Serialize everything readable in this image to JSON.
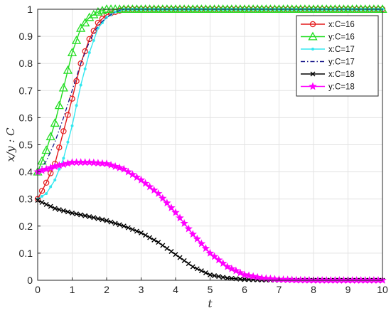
{
  "chart_data": {
    "type": "line",
    "xlabel": "t",
    "ylabel": "x/y : C",
    "xlim": [
      0,
      10
    ],
    "ylim": [
      0,
      1
    ],
    "xticks": [
      0,
      1,
      2,
      3,
      4,
      5,
      6,
      7,
      8,
      9,
      10
    ],
    "yticks": [
      0,
      0.1,
      0.2,
      0.3,
      0.4,
      0.5,
      0.6,
      0.7,
      0.8,
      0.9,
      1
    ],
    "grid": true,
    "legend_position": "top-right",
    "series": [
      {
        "name": "x:C=16",
        "color": "#e41a1c",
        "marker": "circle",
        "line": "solid",
        "x": [
          0,
          0.25,
          0.5,
          0.75,
          1,
          1.25,
          1.5,
          1.75,
          2,
          2.5,
          3,
          4,
          5,
          6,
          7,
          8,
          9,
          10
        ],
        "y": [
          0.3,
          0.36,
          0.43,
          0.55,
          0.67,
          0.8,
          0.89,
          0.95,
          0.98,
          1.0,
          1.0,
          1.0,
          1.0,
          1.0,
          1.0,
          1.0,
          1.0,
          1.0
        ]
      },
      {
        "name": "y:C=16",
        "color": "#22dd22",
        "marker": "triangle",
        "line": "solid",
        "x": [
          0,
          0.25,
          0.5,
          0.75,
          1,
          1.25,
          1.5,
          1.75,
          2,
          2.5,
          3,
          4,
          5,
          6,
          7,
          8,
          9,
          10
        ],
        "y": [
          0.4,
          0.48,
          0.58,
          0.71,
          0.84,
          0.93,
          0.97,
          0.99,
          1.0,
          1.0,
          1.0,
          1.0,
          1.0,
          1.0,
          1.0,
          1.0,
          1.0,
          1.0
        ]
      },
      {
        "name": "x:C=17",
        "color": "#33e8f0",
        "marker": "dot",
        "line": "solid",
        "x": [
          0,
          0.25,
          0.5,
          0.75,
          1,
          1.25,
          1.5,
          1.75,
          2,
          2.25,
          2.5,
          3,
          4,
          5,
          6,
          7,
          8,
          9,
          10
        ],
        "y": [
          0.3,
          0.32,
          0.37,
          0.45,
          0.57,
          0.72,
          0.84,
          0.93,
          0.97,
          0.99,
          1.0,
          1.0,
          1.0,
          1.0,
          1.0,
          1.0,
          1.0,
          1.0,
          1.0
        ]
      },
      {
        "name": "y:C=17",
        "color": "#1a1a8c",
        "marker": "none",
        "line": "dashdot",
        "x": [
          0,
          0.25,
          0.5,
          0.75,
          1,
          1.25,
          1.5,
          1.75,
          2,
          2.25,
          2.5,
          3,
          4,
          5,
          6,
          7,
          8,
          9,
          10
        ],
        "y": [
          0.4,
          0.44,
          0.51,
          0.6,
          0.7,
          0.8,
          0.88,
          0.94,
          0.97,
          0.99,
          1.0,
          1.0,
          1.0,
          1.0,
          1.0,
          1.0,
          1.0,
          1.0,
          1.0
        ]
      },
      {
        "name": "x:C=18",
        "color": "#000000",
        "marker": "cross",
        "line": "solid",
        "x": [
          0,
          0.5,
          1,
          1.5,
          2,
          2.5,
          3,
          3.5,
          4,
          4.5,
          5,
          5.5,
          6,
          6.5,
          7,
          8,
          9,
          10
        ],
        "y": [
          0.295,
          0.265,
          0.248,
          0.235,
          0.22,
          0.2,
          0.175,
          0.14,
          0.095,
          0.05,
          0.02,
          0.008,
          0.003,
          0.001,
          0.0,
          0.0,
          0.0,
          0.0
        ]
      },
      {
        "name": "y:C=18",
        "color": "#ff00ff",
        "marker": "star",
        "line": "solid",
        "x": [
          0,
          0.5,
          1,
          1.5,
          2,
          2.5,
          3,
          3.5,
          4,
          4.5,
          5,
          5.5,
          6,
          6.5,
          7,
          7.5,
          8,
          9,
          10
        ],
        "y": [
          0.4,
          0.42,
          0.435,
          0.435,
          0.43,
          0.41,
          0.37,
          0.32,
          0.25,
          0.17,
          0.1,
          0.05,
          0.02,
          0.008,
          0.003,
          0.001,
          0.0,
          0.0,
          0.0
        ]
      }
    ]
  }
}
